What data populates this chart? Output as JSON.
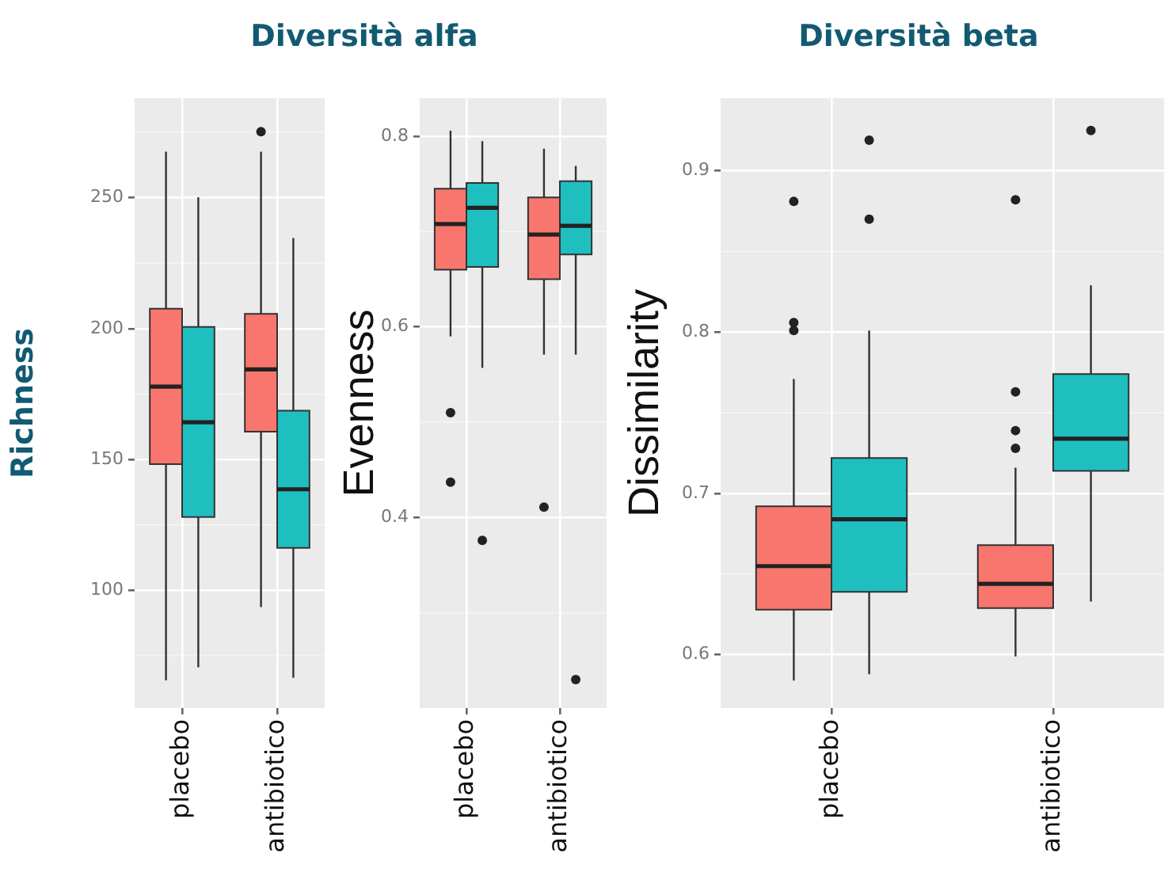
{
  "chart_data": [
    {
      "type": "box",
      "title": "Diversità alfa",
      "ylabel": "Richness",
      "categories": [
        "placebo",
        "antibiotico"
      ],
      "ylim": [
        55,
        288
      ],
      "yticks": [
        100,
        150,
        200,
        250
      ],
      "grid": true,
      "series": [
        {
          "color": "#f8766d",
          "boxes": [
            {
              "low": 65.6,
              "q1": 148.2,
              "median": 177.8,
              "q3": 207.6,
              "high": 267.6
            },
            {
              "low": 93.6,
              "q1": 160.6,
              "median": 184.4,
              "q3": 205.6,
              "high": 267.6,
              "outliers": [
                275.2
              ]
            }
          ]
        },
        {
          "color": "#1fbfc0",
          "boxes": [
            {
              "low": 70.6,
              "q1": 128,
              "median": 164.2,
              "q3": 200.6,
              "high": 250.2
            },
            {
              "low": 66.6,
              "q1": 116.2,
              "median": 138.6,
              "q3": 168.6,
              "high": 234.6
            }
          ]
        }
      ]
    },
    {
      "type": "box",
      "ylabel": "Evenness",
      "categories": [
        "placebo",
        "antibiotico"
      ],
      "ylim": [
        0.2,
        0.84
      ],
      "yticks": [
        0.4,
        0.6,
        0.8
      ],
      "grid": true,
      "series": [
        {
          "color": "#f8766d",
          "boxes": [
            {
              "low": 0.59,
              "q1": 0.66,
              "median": 0.708,
              "q3": 0.745,
              "high": 0.806,
              "outliers": [
                0.51,
                0.437
              ]
            },
            {
              "low": 0.571,
              "q1": 0.65,
              "median": 0.697,
              "q3": 0.736,
              "high": 0.787,
              "outliers": [
                0.411
              ]
            }
          ]
        },
        {
          "color": "#1fbfc0",
          "boxes": [
            {
              "low": 0.557,
              "q1": 0.663,
              "median": 0.725,
              "q3": 0.751,
              "high": 0.795,
              "outliers": [
                0.376
              ]
            },
            {
              "low": 0.571,
              "q1": 0.676,
              "median": 0.706,
              "q3": 0.753,
              "high": 0.769,
              "outliers": [
                0.23
              ]
            }
          ]
        }
      ]
    },
    {
      "type": "box",
      "title": "Diversità beta",
      "ylabel": "Dissimilarity",
      "categories": [
        "placebo",
        "antibiotico"
      ],
      "ylim": [
        0.567,
        0.945
      ],
      "yticks": [
        0.6,
        0.7,
        0.8,
        0.9
      ],
      "grid": true,
      "series": [
        {
          "color": "#f8766d",
          "boxes": [
            {
              "low": 0.584,
              "q1": 0.628,
              "median": 0.655,
              "q3": 0.692,
              "high": 0.771,
              "outliers": [
                0.881,
                0.806,
                0.801
              ]
            },
            {
              "low": 0.599,
              "q1": 0.629,
              "median": 0.644,
              "q3": 0.668,
              "high": 0.716,
              "outliers": [
                0.882,
                0.763,
                0.739,
                0.728
              ]
            }
          ]
        },
        {
          "color": "#1fbfc0",
          "boxes": [
            {
              "low": 0.588,
              "q1": 0.639,
              "median": 0.684,
              "q3": 0.722,
              "high": 0.801,
              "outliers": [
                0.919,
                0.87
              ]
            },
            {
              "low": 0.633,
              "q1": 0.714,
              "median": 0.734,
              "q3": 0.774,
              "high": 0.829,
              "outliers": [
                0.925
              ]
            }
          ]
        }
      ]
    }
  ]
}
